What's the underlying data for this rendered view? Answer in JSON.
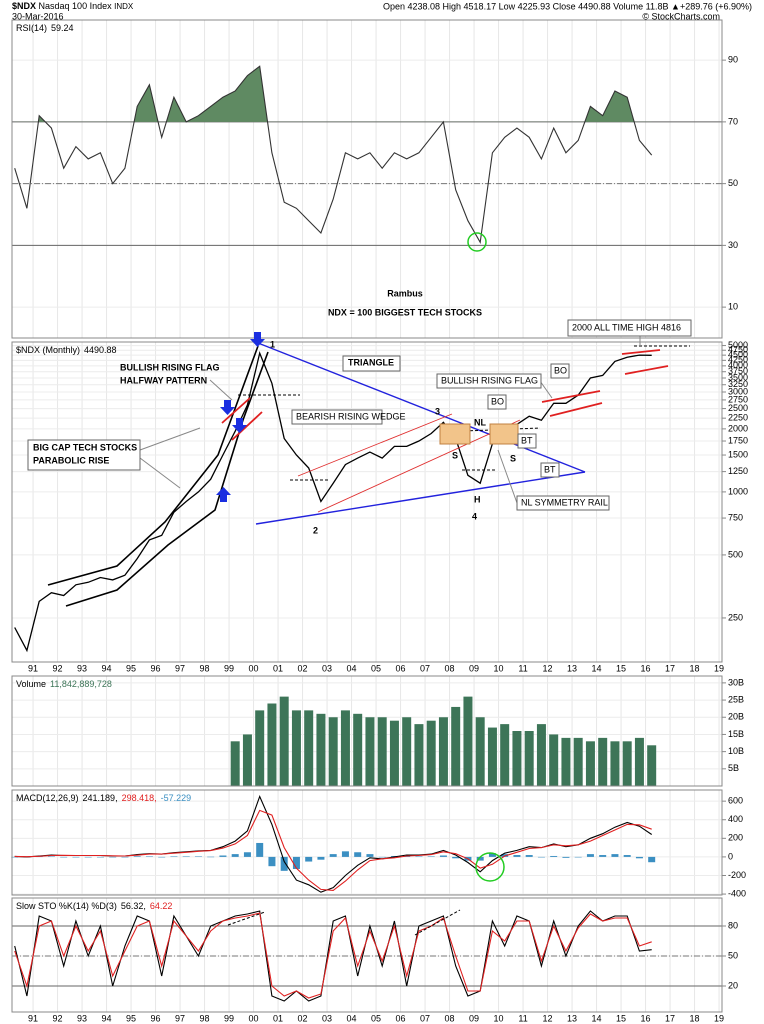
{
  "header": {
    "symbol": "$NDX",
    "name": "Nasdaq 100 Index",
    "exchange": "INDX",
    "date": "30-Mar-2016",
    "quote": "Open 4238.08 High 4518.17 Low 4225.93 Close 4490.88 Volume 11.8B ▲+289.76 (+6.90%)",
    "credit": "© StockCharts.com"
  },
  "annotations": [
    "Rambus",
    "NDX = 100 BIGGEST TECH STOCKS",
    "2000 ALL TIME HIGH 4816",
    "BULLISH RISING FLAG",
    "HALFWAY PATTERN",
    "BIG CAP TECH STOCKS",
    "PARABOLIC RISE",
    "TRIANGLE",
    "BEARISH RISING WEDGE",
    "BULLISH RISING FLAG",
    "NL SYMMETRY RAIL",
    "BO",
    "BO",
    "BT",
    "BT",
    "NL",
    "S",
    "S",
    "H",
    "1",
    "2",
    "3",
    "4"
  ],
  "chart_data": [
    {
      "type": "line",
      "title": "RSI(14)",
      "x": [
        1990.25,
        1990.75,
        1991.25,
        1991.75,
        1992.25,
        1992.75,
        1993.25,
        1993.75,
        1994.25,
        1994.75,
        1995.25,
        1995.75,
        1996.25,
        1996.75,
        1997.25,
        1997.75,
        1998.25,
        1998.75,
        1999.25,
        1999.75,
        2000.25,
        2000.75,
        2001.25,
        2001.75,
        2002.25,
        2002.75,
        2003.25,
        2003.75,
        2004.25,
        2004.75,
        2005.25,
        2005.75,
        2006.25,
        2006.75,
        2007.25,
        2007.75,
        2008.25,
        2008.75,
        2009.25,
        2009.75,
        2010.25,
        2010.75,
        2011.25,
        2011.75,
        2012.25,
        2012.75,
        2013.25,
        2013.75,
        2014.25,
        2014.75,
        2015.25,
        2015.75,
        2016.25
      ],
      "series": [
        {
          "name": "59.24",
          "color": "#333333",
          "style": "line",
          "values": [
            55,
            42,
            72,
            68,
            55,
            62,
            58,
            60,
            50,
            55,
            75,
            82,
            65,
            78,
            70,
            72,
            75,
            78,
            80,
            85,
            88,
            60,
            44,
            42,
            38,
            34,
            45,
            60,
            58,
            60,
            55,
            60,
            58,
            60,
            65,
            70,
            48,
            38,
            31,
            60,
            65,
            68,
            65,
            58,
            68,
            60,
            64,
            75,
            72,
            80,
            78,
            64,
            59.24
          ]
        }
      ],
      "fill_above": 70,
      "fill_color": "#5f8a62",
      "xlim": [
        1990.14,
        2019.12
      ],
      "ylim": [
        0,
        103
      ],
      "yticks": [
        10,
        30,
        50,
        70,
        90
      ],
      "hlines": [
        70,
        30
      ],
      "dashed_hlines": [
        50
      ]
    },
    {
      "type": "line",
      "title": "$NDX (Monthly)",
      "log_y": true,
      "x": [
        1990.25,
        1990.75,
        1991.25,
        1991.75,
        1992.25,
        1992.75,
        1993.25,
        1993.75,
        1994.25,
        1994.75,
        1995.25,
        1995.75,
        1996.25,
        1996.75,
        1997.25,
        1997.75,
        1998.25,
        1998.75,
        1999.25,
        1999.75,
        2000.25,
        2000.75,
        2001.25,
        2001.75,
        2002.25,
        2002.75,
        2003.25,
        2003.75,
        2004.25,
        2004.75,
        2005.25,
        2005.75,
        2006.25,
        2006.75,
        2007.25,
        2007.75,
        2008.25,
        2008.75,
        2009.25,
        2009.75,
        2010.25,
        2010.75,
        2011.25,
        2011.75,
        2012.25,
        2012.75,
        2013.25,
        2013.75,
        2014.25,
        2014.75,
        2015.25,
        2015.75,
        2016.25
      ],
      "series": [
        {
          "name": "4490.88",
          "color": "#000000",
          "style": "line",
          "values": [
            225,
            175,
            300,
            330,
            320,
            360,
            370,
            390,
            380,
            400,
            480,
            590,
            620,
            800,
            900,
            1000,
            1150,
            1500,
            1950,
            2600,
            4600,
            3300,
            1800,
            1500,
            1300,
            900,
            1100,
            1350,
            1450,
            1550,
            1450,
            1650,
            1650,
            1750,
            1900,
            2150,
            1800,
            1200,
            1100,
            1700,
            1900,
            2100,
            2300,
            2200,
            2650,
            2650,
            2900,
            3500,
            3600,
            4200,
            4400,
            4500,
            4490.88
          ]
        }
      ],
      "xlim": [
        1990.14,
        2019.12
      ],
      "ylim": [
        154,
        5200
      ],
      "yticks": [
        250,
        500,
        750,
        1000,
        1250,
        1500,
        1750,
        2000,
        2250,
        2500,
        2750,
        3000,
        3250,
        3500,
        3750,
        4000,
        4250,
        4500,
        4750,
        5000
      ],
      "xticks": [
        {
          "value": 1991,
          "label": "91"
        },
        {
          "value": 1992,
          "label": "92"
        },
        {
          "value": 1993,
          "label": "93"
        },
        {
          "value": 1994,
          "label": "94"
        },
        {
          "value": 1995,
          "label": "95"
        },
        {
          "value": 1996,
          "label": "96"
        },
        {
          "value": 1997,
          "label": "97"
        },
        {
          "value": 1998,
          "label": "98"
        },
        {
          "value": 1999,
          "label": "99"
        },
        {
          "value": 2000,
          "label": "00"
        },
        {
          "value": 2001,
          "label": "01"
        },
        {
          "value": 2002,
          "label": "02"
        },
        {
          "value": 2003,
          "label": "03"
        },
        {
          "value": 2004,
          "label": "04"
        },
        {
          "value": 2005,
          "label": "05"
        },
        {
          "value": 2006,
          "label": "06"
        },
        {
          "value": 2007,
          "label": "07"
        },
        {
          "value": 2008,
          "label": "08"
        },
        {
          "value": 2009,
          "label": "09"
        },
        {
          "value": 2010,
          "label": "10"
        },
        {
          "value": 2011,
          "label": "11"
        },
        {
          "value": 2012,
          "label": "12"
        },
        {
          "value": 2013,
          "label": "13"
        },
        {
          "value": 2014,
          "label": "14"
        },
        {
          "value": 2015,
          "label": "15"
        },
        {
          "value": 2016,
          "label": "16"
        },
        {
          "value": 2017,
          "label": "17"
        },
        {
          "value": 2018,
          "label": "18"
        },
        {
          "value": 2019,
          "label": "19"
        }
      ],
      "grid": true
    },
    {
      "type": "bar",
      "title": "Volume",
      "x": [
        1999.25,
        1999.75,
        2000.25,
        2000.75,
        2001.25,
        2001.75,
        2002.25,
        2002.75,
        2003.25,
        2003.75,
        2004.25,
        2004.75,
        2005.25,
        2005.75,
        2006.25,
        2006.75,
        2007.25,
        2007.75,
        2008.25,
        2008.75,
        2009.25,
        2009.75,
        2010.25,
        2010.75,
        2011.25,
        2011.75,
        2012.25,
        2012.75,
        2013.25,
        2013.75,
        2014.25,
        2014.75,
        2015.25,
        2015.75,
        2016.25
      ],
      "series": [
        {
          "name": "11,842,889,728",
          "color": "#3d7558",
          "style": "bar",
          "values": [
            13,
            15,
            22,
            24,
            26,
            22,
            22,
            21,
            20,
            22,
            21,
            20,
            20,
            19,
            20,
            18,
            19,
            20,
            23,
            26,
            20,
            17,
            18,
            16,
            16,
            18,
            15,
            14,
            14,
            13,
            14,
            13,
            13,
            14,
            11.84
          ]
        }
      ],
      "xlim": [
        1990.14,
        2019.12
      ],
      "ylim": [
        0,
        32
      ],
      "yticks": [
        {
          "value": 5,
          "label": "5B"
        },
        {
          "value": 10,
          "label": "10B"
        },
        {
          "value": 15,
          "label": "15B"
        },
        {
          "value": 20,
          "label": "20B"
        },
        {
          "value": 25,
          "label": "25B"
        },
        {
          "value": 30,
          "label": "30B"
        }
      ]
    },
    {
      "type": "line",
      "title": "MACD(12,26,9)",
      "x": [
        1990.25,
        1990.75,
        1991.25,
        1991.75,
        1992.25,
        1992.75,
        1993.25,
        1993.75,
        1994.25,
        1994.75,
        1995.25,
        1995.75,
        1996.25,
        1996.75,
        1997.25,
        1997.75,
        1998.25,
        1998.75,
        1999.25,
        1999.75,
        2000.25,
        2000.75,
        2001.25,
        2001.75,
        2002.25,
        2002.75,
        2003.25,
        2003.75,
        2004.25,
        2004.75,
        2005.25,
        2005.75,
        2006.25,
        2006.75,
        2007.25,
        2007.75,
        2008.25,
        2008.75,
        2009.25,
        2009.75,
        2010.25,
        2010.75,
        2011.25,
        2011.75,
        2012.25,
        2012.75,
        2013.25,
        2013.75,
        2014.25,
        2014.75,
        2015.25,
        2015.75,
        2016.25
      ],
      "series": [
        {
          "name": "-57.229",
          "color": "#3b8fc2",
          "style": "bar",
          "values": [
            0,
            -2,
            4,
            5,
            -2,
            0,
            0,
            0,
            -2,
            0,
            7,
            5,
            0,
            5,
            5,
            5,
            2,
            15,
            30,
            50,
            150,
            -100,
            -150,
            -130,
            -50,
            -30,
            30,
            60,
            50,
            30,
            0,
            10,
            10,
            5,
            5,
            15,
            -15,
            -40,
            -40,
            40,
            30,
            20,
            20,
            0,
            10,
            -10,
            0,
            30,
            20,
            30,
            20,
            -15,
            -57.229
          ]
        },
        {
          "name": "241.189,",
          "color": "#000000",
          "style": "line",
          "values": [
            5,
            0,
            10,
            20,
            15,
            15,
            15,
            15,
            10,
            10,
            25,
            35,
            30,
            45,
            55,
            65,
            70,
            110,
            170,
            280,
            650,
            350,
            -50,
            -250,
            -300,
            -380,
            -330,
            -200,
            -90,
            -10,
            -20,
            0,
            20,
            20,
            30,
            70,
            20,
            -60,
            -160,
            -40,
            40,
            70,
            110,
            100,
            140,
            110,
            130,
            200,
            250,
            320,
            370,
            330,
            241.189
          ]
        },
        {
          "name": "298.418,",
          "color": "#e02020",
          "style": "line",
          "values": [
            5,
            2,
            6,
            15,
            17,
            15,
            15,
            15,
            12,
            10,
            18,
            30,
            30,
            40,
            50,
            60,
            68,
            95,
            140,
            230,
            500,
            450,
            100,
            -120,
            -250,
            -350,
            -360,
            -260,
            -140,
            -40,
            -20,
            -10,
            10,
            15,
            25,
            55,
            35,
            -20,
            -120,
            -80,
            10,
            50,
            90,
            100,
            130,
            120,
            130,
            170,
            230,
            290,
            350,
            345,
            298.418
          ]
        }
      ],
      "legend_order": [
        1,
        2,
        0
      ],
      "xlim": [
        1990.14,
        2019.12
      ],
      "ylim": [
        -410,
        720
      ],
      "yticks": [
        -400,
        -200,
        0,
        200,
        400,
        600
      ]
    },
    {
      "type": "line",
      "title": "Slow STO %K(14) %D(3)",
      "x": [
        1990.25,
        1990.75,
        1991.25,
        1991.75,
        1992.25,
        1992.75,
        1993.25,
        1993.75,
        1994.25,
        1994.75,
        1995.25,
        1995.75,
        1996.25,
        1996.75,
        1997.25,
        1997.75,
        1998.25,
        1998.75,
        1999.25,
        1999.75,
        2000.25,
        2000.75,
        2001.25,
        2001.75,
        2002.25,
        2002.75,
        2003.25,
        2003.75,
        2004.25,
        2004.75,
        2005.25,
        2005.75,
        2006.25,
        2006.75,
        2007.25,
        2007.75,
        2008.25,
        2008.75,
        2009.25,
        2009.75,
        2010.25,
        2010.75,
        2011.25,
        2011.75,
        2012.25,
        2012.75,
        2013.25,
        2013.75,
        2014.25,
        2014.75,
        2015.25,
        2015.75,
        2016.25
      ],
      "series": [
        {
          "name": "56.32,",
          "color": "#000000",
          "style": "line",
          "values": [
            60,
            10,
            90,
            85,
            40,
            85,
            50,
            80,
            20,
            60,
            90,
            85,
            30,
            90,
            70,
            50,
            80,
            85,
            90,
            92,
            95,
            10,
            5,
            15,
            5,
            10,
            85,
            90,
            30,
            80,
            40,
            85,
            20,
            80,
            85,
            90,
            40,
            10,
            15,
            85,
            60,
            90,
            85,
            40,
            85,
            50,
            80,
            95,
            85,
            90,
            90,
            55,
            56.32
          ]
        },
        {
          "name": "64.22",
          "color": "#e02020",
          "style": "line",
          "values": [
            55,
            20,
            80,
            85,
            50,
            80,
            55,
            75,
            30,
            55,
            80,
            85,
            40,
            85,
            70,
            55,
            75,
            85,
            88,
            90,
            93,
            20,
            10,
            15,
            8,
            12,
            75,
            88,
            40,
            75,
            45,
            80,
            30,
            75,
            80,
            88,
            50,
            15,
            15,
            75,
            65,
            85,
            85,
            45,
            80,
            55,
            78,
            92,
            85,
            88,
            88,
            60,
            64.22
          ]
        }
      ],
      "xlim": [
        1990.14,
        2019.12
      ],
      "ylim": [
        -6,
        108
      ],
      "yticks": [
        20,
        50,
        80
      ],
      "hlines": [
        80,
        20
      ],
      "dashed_hlines": [
        50
      ],
      "xticks": [
        {
          "value": 1991,
          "label": "91"
        },
        {
          "value": 1992,
          "label": "92"
        },
        {
          "value": 1993,
          "label": "93"
        },
        {
          "value": 1994,
          "label": "94"
        },
        {
          "value": 1995,
          "label": "95"
        },
        {
          "value": 1996,
          "label": "96"
        },
        {
          "value": 1997,
          "label": "97"
        },
        {
          "value": 1998,
          "label": "98"
        },
        {
          "value": 1999,
          "label": "99"
        },
        {
          "value": 2000,
          "label": "00"
        },
        {
          "value": 2001,
          "label": "01"
        },
        {
          "value": 2002,
          "label": "02"
        },
        {
          "value": 2003,
          "label": "03"
        },
        {
          "value": 2004,
          "label": "04"
        },
        {
          "value": 2005,
          "label": "05"
        },
        {
          "value": 2006,
          "label": "06"
        },
        {
          "value": 2007,
          "label": "07"
        },
        {
          "value": 2008,
          "label": "08"
        },
        {
          "value": 2009,
          "label": "09"
        },
        {
          "value": 2010,
          "label": "10"
        },
        {
          "value": 2011,
          "label": "11"
        },
        {
          "value": 2012,
          "label": "12"
        },
        {
          "value": 2013,
          "label": "13"
        },
        {
          "value": 2014,
          "label": "14"
        },
        {
          "value": 2015,
          "label": "15"
        },
        {
          "value": 2016,
          "label": "16"
        },
        {
          "value": 2017,
          "label": "17"
        },
        {
          "value": 2018,
          "label": "18"
        },
        {
          "value": 2019,
          "label": "19"
        }
      ]
    }
  ]
}
